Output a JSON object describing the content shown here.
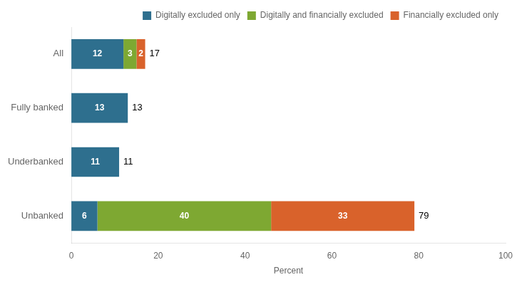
{
  "chart_data": {
    "type": "bar",
    "orientation": "horizontal",
    "stacked": true,
    "categories": [
      "All",
      "Fully banked",
      "Underbanked",
      "Unbanked"
    ],
    "series": [
      {
        "name": "Digitally excluded only",
        "color": "#2e6f8e",
        "values": [
          12,
          13,
          11,
          6
        ]
      },
      {
        "name": "Digitally and financially excluded",
        "color": "#7ea832",
        "values": [
          3,
          0,
          0,
          40
        ]
      },
      {
        "name": "Financially excluded only",
        "color": "#d9622b",
        "values": [
          2,
          0,
          0,
          33
        ]
      }
    ],
    "totals": [
      17,
      13,
      11,
      79
    ],
    "data_labels": true,
    "xlabel": "Percent",
    "xlim": [
      0,
      100
    ],
    "xticks": [
      0,
      20,
      40,
      60,
      80,
      100
    ],
    "grid": false,
    "legend": "upper right"
  }
}
